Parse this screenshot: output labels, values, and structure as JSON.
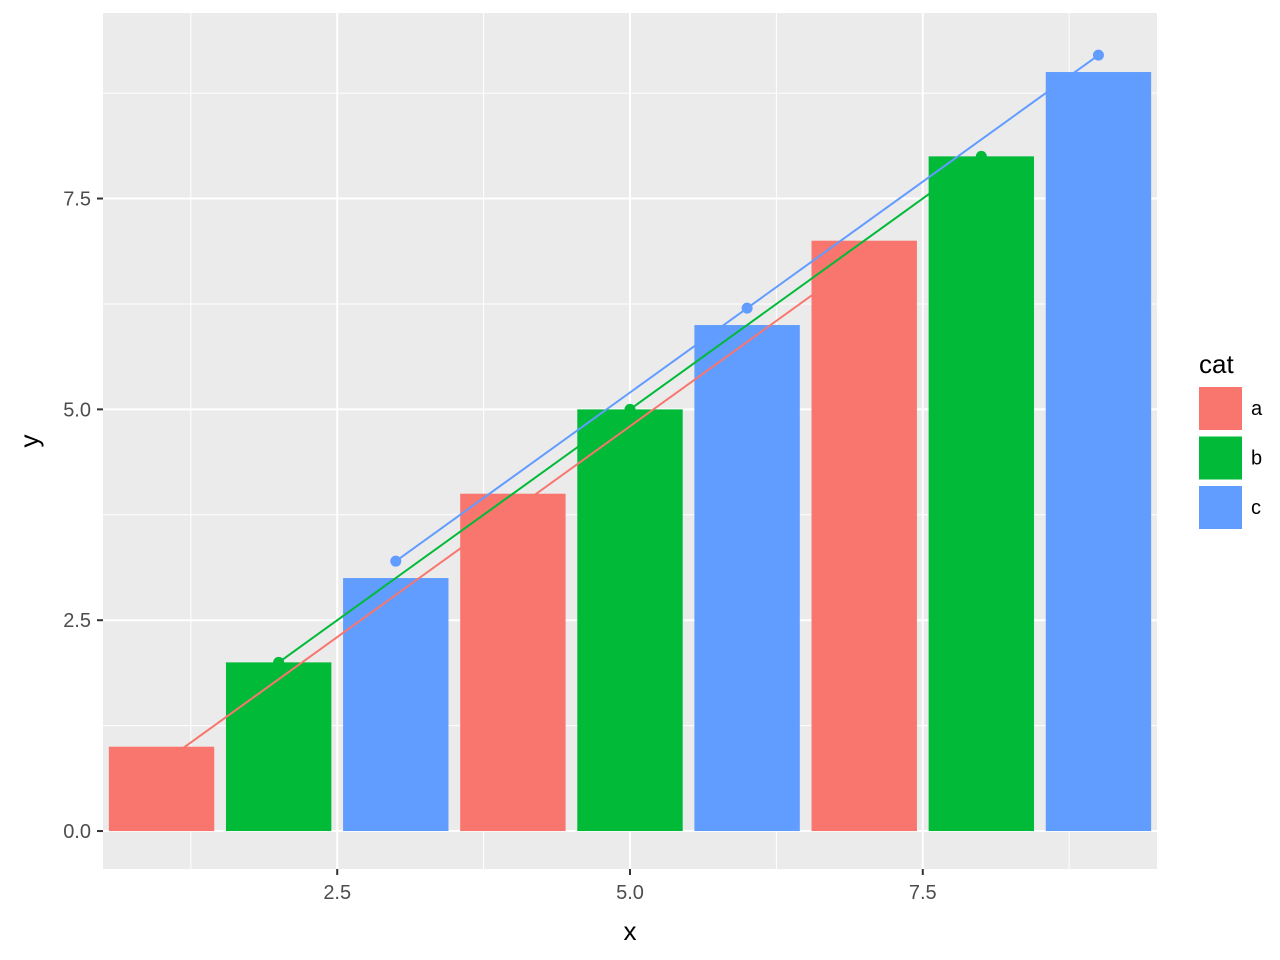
{
  "chart_data": {
    "type": "bar",
    "title": "",
    "xlabel": "x",
    "ylabel": "y",
    "xlim": [
      0.5,
      9.5
    ],
    "ylim": [
      -0.45,
      9.7
    ],
    "x_ticks": [
      2.5,
      5.0,
      7.5
    ],
    "x_tick_labels": [
      "2.5",
      "5.0",
      "7.5"
    ],
    "y_ticks": [
      0.0,
      2.5,
      5.0,
      7.5
    ],
    "y_tick_labels": [
      "0.0",
      "2.5",
      "5.0",
      "7.5"
    ],
    "grid": true,
    "legend": {
      "title": "cat",
      "placement": "right"
    },
    "bars": [
      {
        "x": 1,
        "value": 1,
        "cat": "a"
      },
      {
        "x": 2,
        "value": 2,
        "cat": "b"
      },
      {
        "x": 3,
        "value": 3,
        "cat": "c"
      },
      {
        "x": 4,
        "value": 4,
        "cat": "a"
      },
      {
        "x": 5,
        "value": 5,
        "cat": "b"
      },
      {
        "x": 6,
        "value": 6,
        "cat": "c"
      },
      {
        "x": 7,
        "value": 7,
        "cat": "a"
      },
      {
        "x": 8,
        "value": 8,
        "cat": "b"
      },
      {
        "x": 9,
        "value": 9,
        "cat": "c"
      }
    ],
    "series": [
      {
        "name": "a",
        "color": "#F8766D",
        "points": [
          [
            1,
            0.8
          ],
          [
            4,
            3.8
          ],
          [
            7,
            6.8
          ]
        ]
      },
      {
        "name": "b",
        "color": "#00BA38",
        "points": [
          [
            2,
            2.0
          ],
          [
            5,
            5.0
          ],
          [
            8,
            8.0
          ]
        ]
      },
      {
        "name": "c",
        "color": "#619CFF",
        "points": [
          [
            3,
            3.2
          ],
          [
            6,
            6.2
          ],
          [
            9,
            9.2
          ]
        ]
      }
    ]
  },
  "colors": {
    "panel_background": "#EBEBEB",
    "grid": "#FFFFFF",
    "a": "#F8766D",
    "b": "#00BA38",
    "c": "#619CFF"
  }
}
